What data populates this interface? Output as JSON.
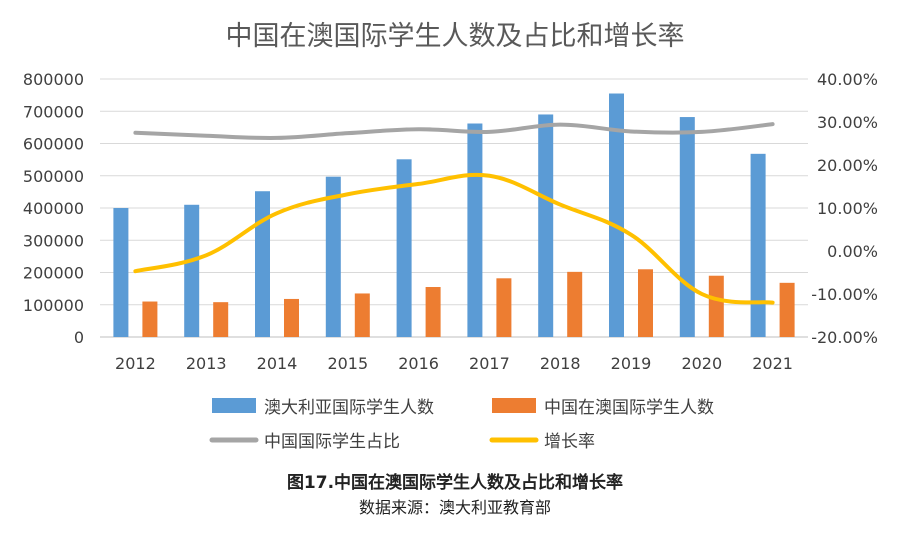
{
  "chart_data": {
    "type": "bar",
    "title": "中国在澳国际学生人数及占比和增长率",
    "categories": [
      "2012",
      "2013",
      "2014",
      "2015",
      "2016",
      "2017",
      "2018",
      "2019",
      "2020",
      "2021"
    ],
    "series": [
      {
        "name": "澳大利亚国际学生人数",
        "type": "bar",
        "axis": "left",
        "color": "#5B9BD5",
        "values": [
          400000,
          410000,
          452000,
          497000,
          551000,
          662000,
          690000,
          755000,
          682000,
          568000
        ]
      },
      {
        "name": "中国在澳国际学生人数",
        "type": "bar",
        "axis": "left",
        "color": "#ED7D31",
        "values": [
          110000,
          108000,
          118000,
          135000,
          155000,
          182000,
          202000,
          210000,
          190000,
          168000
        ]
      },
      {
        "name": "中国国际学生占比",
        "type": "line",
        "axis": "right",
        "color": "#A5A5A5",
        "values": [
          0.275,
          0.268,
          0.263,
          0.274,
          0.283,
          0.277,
          0.294,
          0.278,
          0.277,
          0.295
        ]
      },
      {
        "name": "增长率",
        "type": "line",
        "axis": "right",
        "color": "#FFC000",
        "values": [
          -0.047,
          -0.01,
          0.088,
          0.132,
          0.156,
          0.175,
          0.108,
          0.038,
          -0.1,
          -0.12
        ]
      }
    ],
    "left_axis": {
      "ylim": [
        0,
        800000
      ],
      "ticks": [
        "800000",
        "700000",
        "600000",
        "500000",
        "400000",
        "300000",
        "200000",
        "100000",
        "0"
      ]
    },
    "right_axis": {
      "ylim": [
        -0.2,
        0.4
      ],
      "ticks": [
        "40.00%",
        "30.00%",
        "20.00%",
        "10.00%",
        "0.00%",
        "-10.00%",
        "-20.00%"
      ]
    },
    "grid": true,
    "legend_position": "bottom"
  },
  "caption": {
    "figure_title": "图17.中国在澳国际学生人数及占比和增长率",
    "source": "数据来源：澳大利亚教育部"
  }
}
